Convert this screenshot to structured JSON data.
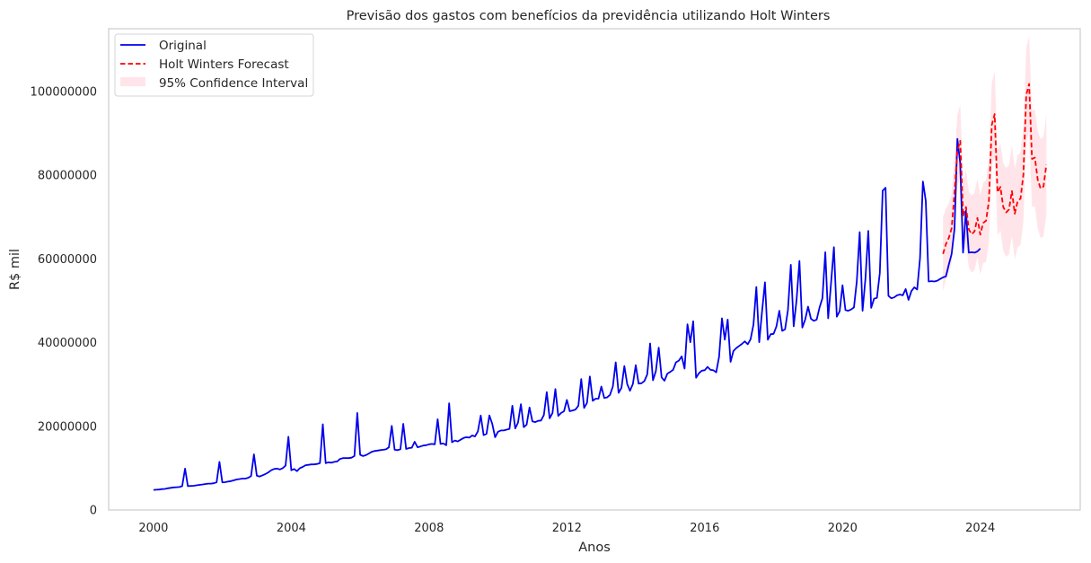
{
  "chart_data": {
    "type": "line",
    "title": "Previsão dos gastos com benefícios da previdência utilizando Holt Winters",
    "xlabel": "Anos",
    "ylabel": "R$ mil",
    "xlim": [
      1998.7,
      2026.9
    ],
    "ylim": [
      0,
      115000000
    ],
    "xticks": [
      2000,
      2004,
      2008,
      2012,
      2016,
      2020,
      2024
    ],
    "yticks": [
      0,
      20000000,
      40000000,
      60000000,
      80000000,
      100000000
    ],
    "xtick_labels": [
      "2000",
      "2004",
      "2008",
      "2012",
      "2016",
      "2020",
      "2024"
    ],
    "ytick_labels": [
      "0",
      "20000000",
      "40000000",
      "60000000",
      "80000000",
      "100000000"
    ],
    "grid": false,
    "legend_position": "top-left",
    "colors": {
      "original": "#0000ee",
      "forecast": "#ff0000",
      "confidence": "#ffc0cb",
      "axes_edge": "#cccccc",
      "text": "#262626"
    },
    "legend": [
      {
        "label": "Original",
        "style": "solid-line",
        "color": "#0000ee"
      },
      {
        "label": "Holt Winters Forecast",
        "style": "dashed-line",
        "color": "#ff0000"
      },
      {
        "label": "95% Confidence Interval",
        "style": "fill",
        "color": "#ffc0cb"
      }
    ],
    "series": [
      {
        "name": "Original",
        "start": 2000,
        "step": 0.0833333,
        "values": [
          4.8,
          4.85,
          4.9,
          5.0,
          5.05,
          5.2,
          5.3,
          5.4,
          5.45,
          5.5,
          5.7,
          9.9,
          5.7,
          5.75,
          5.8,
          5.9,
          6.0,
          6.1,
          6.2,
          6.3,
          6.3,
          6.4,
          6.6,
          11.5,
          6.6,
          6.65,
          6.8,
          6.9,
          7.1,
          7.3,
          7.4,
          7.5,
          7.5,
          7.7,
          8.1,
          13.3,
          8.2,
          8.0,
          8.3,
          8.6,
          9.0,
          9.5,
          9.8,
          9.9,
          9.7,
          10.0,
          10.6,
          17.5,
          9.5,
          9.8,
          9.3,
          10.0,
          10.3,
          10.7,
          10.8,
          10.9,
          10.9,
          11.0,
          11.2,
          20.5,
          11.2,
          11.4,
          11.3,
          11.5,
          11.6,
          12.2,
          12.4,
          12.4,
          12.4,
          12.5,
          12.9,
          23.2,
          13.2,
          12.9,
          13.1,
          13.5,
          13.9,
          14.1,
          14.2,
          14.3,
          14.4,
          14.5,
          15.0,
          20.1,
          14.4,
          14.3,
          14.5,
          20.6,
          14.6,
          14.8,
          14.9,
          16.3,
          15.0,
          15.2,
          15.4,
          15.5,
          15.7,
          15.8,
          15.7,
          21.7,
          15.8,
          15.9,
          15.5,
          25.5,
          16.2,
          16.6,
          16.4,
          16.8,
          17.2,
          17.4,
          17.3,
          17.8,
          17.6,
          18.8,
          22.6,
          17.9,
          18.2,
          22.6,
          20.6,
          17.4,
          18.7,
          19.0,
          19.0,
          19.2,
          19.4,
          24.9,
          19.5,
          20.9,
          25.3,
          19.8,
          20.4,
          24.5,
          21.2,
          21.0,
          21.3,
          21.4,
          22.7,
          28.2,
          21.9,
          23.2,
          28.9,
          22.5,
          23.2,
          23.6,
          26.3,
          23.6,
          23.8,
          24.0,
          24.9,
          31.3,
          24.4,
          25.6,
          31.9,
          26.1,
          26.6,
          26.6,
          29.5,
          26.8,
          26.9,
          27.5,
          29.5,
          35.3,
          28.0,
          29.2,
          34.4,
          30.1,
          28.5,
          30.1,
          34.6,
          30.2,
          30.3,
          30.8,
          32.4,
          39.8,
          31.0,
          33.2,
          38.8,
          31.7,
          30.9,
          32.6,
          33.0,
          33.5,
          35.3,
          35.7,
          36.7,
          33.8,
          44.4,
          40.1,
          45.1,
          31.6,
          32.7,
          33.3,
          33.4,
          34.2,
          33.5,
          33.4,
          32.9,
          36.6,
          45.8,
          40.7,
          45.5,
          35.4,
          38.0,
          38.7,
          39.2,
          39.7,
          40.3,
          39.6,
          40.8,
          44.3,
          53.3,
          40.1,
          47.5,
          54.4,
          40.7,
          42.0,
          42.1,
          43.9,
          47.6,
          42.8,
          43.2,
          47.8,
          58.6,
          43.9,
          50.2,
          59.5,
          43.6,
          45.5,
          48.6,
          45.7,
          45.2,
          45.5,
          48.4,
          50.6,
          61.6,
          45.8,
          54.2,
          62.8,
          46.2,
          47.5,
          53.7,
          47.8,
          47.6,
          47.9,
          48.4,
          54.7,
          66.4,
          47.6,
          55.3,
          66.7,
          48.3,
          50.5,
          50.7,
          56.6,
          76.3,
          77.0,
          51.2,
          50.6,
          50.8,
          51.3,
          51.5,
          51.3,
          52.8,
          50.2,
          52.3,
          53.2,
          52.7,
          60.2,
          78.5,
          73.9,
          54.6,
          54.7,
          54.6,
          54.8,
          55.2,
          55.6,
          55.8,
          58.6,
          61.2,
          67.2,
          88.7,
          83.0,
          61.5,
          71.5,
          61.5,
          61.6,
          61.5,
          61.8,
          62.5
        ]
      },
      {
        "name": "Holt Winters Forecast",
        "start": 2022.917,
        "step": 0.0833333,
        "values": [
          61.2,
          63.5,
          65.0,
          67.3,
          75.8,
          85.9,
          88.2,
          70.2,
          72.4,
          67.0,
          65.9,
          66.6,
          69.8,
          65.8,
          68.6,
          69.1,
          73.8,
          92.0,
          94.6,
          75.9,
          77.2,
          72.4,
          71.1,
          71.8,
          76.2,
          70.8,
          73.8,
          74.4,
          80.1,
          99.2,
          101.8,
          83.9,
          84.2,
          78.9,
          76.8,
          77.3,
          82.5
        ]
      }
    ],
    "confidence_interval": {
      "start": 2022.917,
      "step": 0.0833333,
      "lower": [
        52.3,
        55.1,
        56.7,
        59.0,
        67.4,
        77.4,
        79.5,
        61.4,
        63.4,
        58.0,
        56.7,
        57.3,
        60.4,
        56.3,
        59.0,
        59.3,
        63.9,
        82.0,
        84.4,
        65.6,
        66.8,
        61.9,
        60.5,
        61.1,
        65.4,
        59.9,
        62.8,
        63.3,
        68.9,
        87.9,
        90.4,
        72.4,
        72.6,
        67.2,
        65.0,
        65.4,
        70.5
      ],
      "upper": [
        70.1,
        71.9,
        73.3,
        75.6,
        84.2,
        94.4,
        96.9,
        79.0,
        81.4,
        76.0,
        75.1,
        75.9,
        79.2,
        75.3,
        78.2,
        78.9,
        83.7,
        102.0,
        104.8,
        86.2,
        87.6,
        82.9,
        81.7,
        82.5,
        87.0,
        81.7,
        84.8,
        85.5,
        91.3,
        110.5,
        113.2,
        95.4,
        95.8,
        90.6,
        88.6,
        89.2,
        94.5
      ]
    },
    "value_unit_in_arrays": "millions"
  }
}
